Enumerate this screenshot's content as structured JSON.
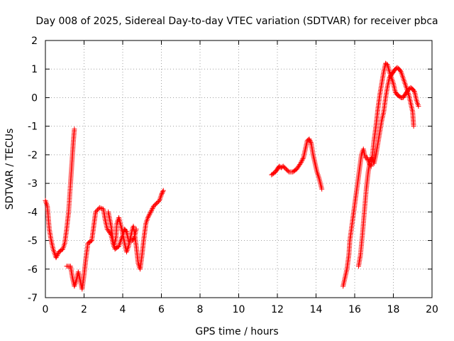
{
  "chart_data": {
    "type": "scatter",
    "title": "Day 008 of 2025, Sidereal Day-to-day VTEC variation (SDTVAR) for receiver pbca",
    "xlabel": "GPS time / hours",
    "ylabel": "SDTVAR / TECUs",
    "xlim": [
      0,
      20
    ],
    "ylim": [
      -7,
      2
    ],
    "xticks": [
      0,
      2,
      4,
      6,
      8,
      10,
      12,
      14,
      16,
      18,
      20
    ],
    "yticks": [
      -7,
      -6,
      -5,
      -4,
      -3,
      -2,
      -1,
      0,
      1,
      2
    ],
    "grid": true,
    "marker": "plus",
    "color": "#ff0000",
    "series": [
      {
        "segments": [
          [
            [
              0.0,
              -3.6
            ],
            [
              0.1,
              -3.8
            ],
            [
              0.15,
              -4.2
            ],
            [
              0.2,
              -4.6
            ],
            [
              0.3,
              -5.0
            ],
            [
              0.4,
              -5.3
            ],
            [
              0.5,
              -5.5
            ],
            [
              0.55,
              -5.6
            ],
            [
              0.7,
              -5.4
            ],
            [
              0.9,
              -5.3
            ],
            [
              1.0,
              -5.1
            ],
            [
              1.1,
              -4.6
            ],
            [
              1.2,
              -4.0
            ],
            [
              1.3,
              -3.0
            ],
            [
              1.35,
              -2.5
            ],
            [
              1.4,
              -2.0
            ],
            [
              1.45,
              -1.5
            ],
            [
              1.5,
              -1.1
            ]
          ],
          [
            [
              1.1,
              -5.9
            ],
            [
              1.3,
              -5.9
            ],
            [
              1.4,
              -6.3
            ],
            [
              1.5,
              -6.6
            ],
            [
              1.6,
              -6.4
            ],
            [
              1.7,
              -6.1
            ],
            [
              1.8,
              -6.4
            ],
            [
              1.9,
              -6.7
            ],
            [
              2.0,
              -6.2
            ],
            [
              2.1,
              -5.6
            ],
            [
              2.2,
              -5.1
            ],
            [
              2.4,
              -5.0
            ],
            [
              2.5,
              -4.5
            ],
            [
              2.6,
              -4.0
            ],
            [
              2.8,
              -3.85
            ],
            [
              3.0,
              -3.9
            ],
            [
              3.1,
              -4.3
            ],
            [
              3.2,
              -4.6
            ],
            [
              3.4,
              -4.8
            ],
            [
              3.5,
              -5.1
            ],
            [
              3.6,
              -5.3
            ],
            [
              3.8,
              -5.2
            ],
            [
              4.0,
              -4.8
            ],
            [
              4.1,
              -4.6
            ],
            [
              4.2,
              -4.7
            ],
            [
              4.3,
              -5.0
            ],
            [
              4.5,
              -5.0
            ],
            [
              4.6,
              -4.9
            ],
            [
              4.7,
              -4.6
            ]
          ],
          [
            [
              3.25,
              -4.0
            ],
            [
              3.4,
              -4.5
            ],
            [
              3.5,
              -5.0
            ],
            [
              3.55,
              -5.2
            ],
            [
              3.65,
              -4.9
            ],
            [
              3.7,
              -4.4
            ],
            [
              3.8,
              -4.2
            ],
            [
              3.95,
              -4.6
            ],
            [
              4.1,
              -5.1
            ],
            [
              4.2,
              -5.4
            ],
            [
              4.3,
              -5.2
            ],
            [
              4.4,
              -4.9
            ],
            [
              4.5,
              -4.6
            ],
            [
              4.55,
              -4.5
            ],
            [
              4.6,
              -4.7
            ],
            [
              4.7,
              -5.2
            ],
            [
              4.8,
              -5.8
            ],
            [
              4.9,
              -6.0
            ],
            [
              5.0,
              -5.5
            ],
            [
              5.1,
              -4.9
            ],
            [
              5.2,
              -4.4
            ],
            [
              5.3,
              -4.2
            ],
            [
              5.45,
              -4.0
            ],
            [
              5.6,
              -3.8
            ],
            [
              5.75,
              -3.7
            ],
            [
              5.9,
              -3.6
            ],
            [
              6.0,
              -3.4
            ],
            [
              6.1,
              -3.25
            ]
          ]
        ]
      },
      {
        "segments": [
          [
            [
              11.7,
              -2.7
            ],
            [
              11.8,
              -2.65
            ],
            [
              11.9,
              -2.6
            ],
            [
              12.0,
              -2.5
            ],
            [
              12.1,
              -2.4
            ],
            [
              12.2,
              -2.45
            ],
            [
              12.3,
              -2.4
            ],
            [
              12.45,
              -2.5
            ],
            [
              12.6,
              -2.6
            ],
            [
              12.8,
              -2.6
            ],
            [
              13.0,
              -2.5
            ],
            [
              13.2,
              -2.3
            ],
            [
              13.35,
              -2.1
            ],
            [
              13.45,
              -1.8
            ],
            [
              13.55,
              -1.5
            ],
            [
              13.65,
              -1.45
            ],
            [
              13.75,
              -1.6
            ],
            [
              13.85,
              -2.0
            ],
            [
              13.95,
              -2.3
            ],
            [
              14.05,
              -2.6
            ],
            [
              14.15,
              -2.8
            ],
            [
              14.3,
              -3.2
            ]
          ]
        ]
      },
      {
        "segments": [
          [
            [
              15.4,
              -6.6
            ],
            [
              15.5,
              -6.3
            ],
            [
              15.6,
              -6.0
            ],
            [
              15.7,
              -5.5
            ],
            [
              15.75,
              -5.0
            ],
            [
              15.85,
              -4.5
            ],
            [
              15.95,
              -4.0
            ],
            [
              16.05,
              -3.5
            ],
            [
              16.15,
              -3.0
            ],
            [
              16.25,
              -2.5
            ],
            [
              16.35,
              -2.0
            ],
            [
              16.45,
              -1.8
            ],
            [
              16.55,
              -2.1
            ],
            [
              16.65,
              -2.1
            ],
            [
              16.75,
              -2.3
            ],
            [
              16.85,
              -2.4
            ],
            [
              17.0,
              -1.5
            ],
            [
              17.1,
              -1.0
            ],
            [
              17.2,
              -0.4
            ],
            [
              17.3,
              0.1
            ],
            [
              17.4,
              0.5
            ],
            [
              17.5,
              0.9
            ],
            [
              17.6,
              1.2
            ],
            [
              17.7,
              1.15
            ],
            [
              17.8,
              0.9
            ],
            [
              17.9,
              0.7
            ],
            [
              18.0,
              0.5
            ],
            [
              18.1,
              0.2
            ],
            [
              18.2,
              0.1
            ],
            [
              18.3,
              0.05
            ],
            [
              18.4,
              0.0
            ],
            [
              18.5,
              0.0
            ],
            [
              18.6,
              0.1
            ],
            [
              18.7,
              0.2
            ],
            [
              18.8,
              0.3
            ],
            [
              18.9,
              0.35
            ],
            [
              19.0,
              0.3
            ],
            [
              19.1,
              0.2
            ],
            [
              19.2,
              -0.1
            ],
            [
              19.3,
              -0.3
            ]
          ],
          [
            [
              16.2,
              -5.9
            ],
            [
              16.3,
              -5.5
            ],
            [
              16.4,
              -4.8
            ],
            [
              16.5,
              -4.0
            ],
            [
              16.6,
              -3.2
            ],
            [
              16.7,
              -2.6
            ],
            [
              16.8,
              -2.2
            ],
            [
              16.9,
              -2.1
            ],
            [
              17.0,
              -2.3
            ],
            [
              17.1,
              -2.0
            ],
            [
              17.2,
              -1.6
            ],
            [
              17.3,
              -1.2
            ],
            [
              17.4,
              -0.8
            ],
            [
              17.5,
              -0.5
            ],
            [
              17.6,
              0.0
            ],
            [
              17.7,
              0.4
            ],
            [
              17.8,
              0.7
            ],
            [
              17.9,
              0.8
            ],
            [
              18.0,
              0.9
            ],
            [
              18.1,
              1.0
            ],
            [
              18.2,
              1.05
            ],
            [
              18.3,
              1.0
            ],
            [
              18.4,
              0.9
            ],
            [
              18.5,
              0.7
            ],
            [
              18.6,
              0.5
            ],
            [
              18.7,
              0.3
            ],
            [
              18.8,
              0.1
            ],
            [
              18.9,
              -0.2
            ],
            [
              19.0,
              -0.5
            ],
            [
              19.05,
              -1.0
            ]
          ]
        ]
      }
    ]
  }
}
